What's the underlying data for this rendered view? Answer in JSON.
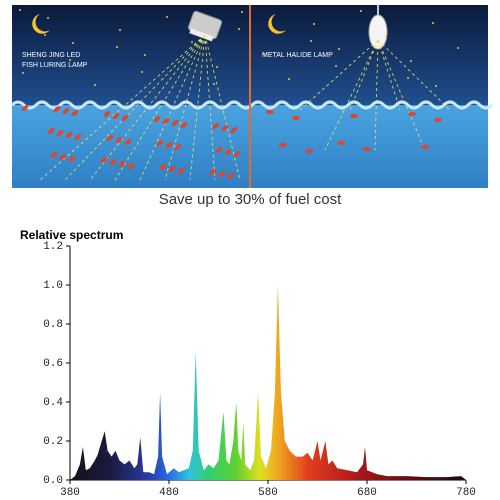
{
  "illustration": {
    "left_label": [
      "SHENG JING LED",
      "FISH LURING LAMP"
    ],
    "right_label": "METAL HALIDE LAMP"
  },
  "caption": "Save up to 30% of fuel cost",
  "chart_data": {
    "type": "area",
    "title": "Relative spectrum",
    "x": [
      380,
      385,
      390,
      393,
      396,
      400,
      405,
      408,
      412,
      415,
      418,
      422,
      426,
      430,
      435,
      440,
      445,
      448,
      451,
      454,
      460,
      465,
      469,
      471,
      473,
      478,
      485,
      490,
      495,
      500,
      504,
      507,
      510,
      515,
      520,
      525,
      530,
      532,
      535,
      538,
      541,
      545,
      548,
      550,
      553,
      555,
      557,
      562,
      566,
      570,
      573,
      578,
      583,
      587,
      590,
      593,
      597,
      602,
      608,
      615,
      620,
      625,
      630,
      633,
      638,
      641,
      645,
      650,
      660,
      670,
      676,
      678,
      680,
      690,
      700,
      720,
      740,
      760,
      775,
      780
    ],
    "values": [
      0,
      0.02,
      0.08,
      0.17,
      0.05,
      0.06,
      0.1,
      0.13,
      0.2,
      0.25,
      0.15,
      0.12,
      0.15,
      0.1,
      0.08,
      0.1,
      0.06,
      0.08,
      0.22,
      0.04,
      0.04,
      0.03,
      0.12,
      0.45,
      0.12,
      0.03,
      0.06,
      0.04,
      0.05,
      0.06,
      0.15,
      0.66,
      0.15,
      0.05,
      0.08,
      0.06,
      0.1,
      0.2,
      0.35,
      0.1,
      0.08,
      0.2,
      0.4,
      0.15,
      0.1,
      0.3,
      0.08,
      0.05,
      0.1,
      0.45,
      0.12,
      0.06,
      0.15,
      0.45,
      1.0,
      0.45,
      0.2,
      0.15,
      0.12,
      0.12,
      0.14,
      0.1,
      0.2,
      0.1,
      0.2,
      0.08,
      0.1,
      0.06,
      0.05,
      0.04,
      0.08,
      0.17,
      0.05,
      0.03,
      0.02,
      0.02,
      0.015,
      0.015,
      0.02,
      0
    ],
    "xlim": [
      380,
      780
    ],
    "xticks": [
      380,
      480,
      580,
      680,
      780
    ],
    "ylim": [
      0,
      1.2
    ],
    "yticks": [
      {
        "value": 0,
        "label": "0.0"
      },
      0.2,
      0.4,
      0.6,
      0.8,
      {
        "value": 1.0,
        "label": "1.0"
      },
      1.2
    ]
  }
}
